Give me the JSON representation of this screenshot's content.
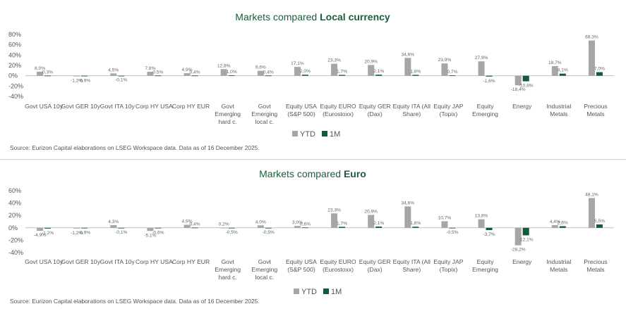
{
  "colors": {
    "ytd": "#a6a6a6",
    "m1": "#0f5c36",
    "title": "#1b5e3b",
    "axis": "#bfbfbf"
  },
  "chart_data": [
    {
      "type": "bar",
      "title_prefix": "Markets compared ",
      "title_bold": "Local currency",
      "categories": [
        [
          "Govt USA 10y"
        ],
        [
          "Govt GER 10y"
        ],
        [
          "Govt ITA 10y"
        ],
        [
          "Corp HY USA"
        ],
        [
          "Corp HY EUR"
        ],
        [
          "Govt",
          "Emerging",
          "hard c."
        ],
        [
          "Govt",
          "Emerging",
          "local c."
        ],
        [
          "Equity USA",
          "(S&P 500)"
        ],
        [
          "Equity EURO",
          "(Eurostoxx)"
        ],
        [
          "Equity GER",
          "(Dax)"
        ],
        [
          "Equity ITA (All",
          "Share)"
        ],
        [
          "Equity JAP",
          "(Topix)"
        ],
        [
          "Equity",
          "Emerging"
        ],
        [
          "Energy"
        ],
        [
          "Industrial",
          "Metals"
        ],
        [
          "Precious",
          "Metals"
        ]
      ],
      "series": [
        {
          "name": "YTD",
          "values": [
            8.0,
            -1.2,
            4.5,
            7.8,
            4.9,
            12.8,
            9.6,
            17.1,
            23.3,
            20.9,
            34.6,
            23.9,
            27.9,
            -18.4,
            18.7,
            68.3
          ],
          "labels": [
            "8,0%",
            "-1,2%",
            "4,5%",
            "7,8%",
            "4,9%",
            "12,8%",
            "9,6%",
            "17,1%",
            "23,3%",
            "20,9%",
            "34,6%",
            "23,9%",
            "27,9%",
            "-18,4%",
            "18,7%",
            "68,3%"
          ]
        },
        {
          "name": "1M",
          "values": [
            0.3,
            -0.9,
            -0.1,
            0.5,
            0.4,
            1.0,
            0.4,
            2.0,
            1.7,
            2.1,
            1.8,
            0.7,
            -1.6,
            -10.8,
            4.1,
            7.0
          ],
          "labels": [
            "0,3%",
            "-0,9%",
            "-0,1%",
            "0,5%",
            "0,4%",
            "1,0%",
            "0,4%",
            "2,0%",
            "1,7%",
            "2,1%",
            "1,8%",
            "0,7%",
            "-1,6%",
            "-10,8%",
            "4,1%",
            "7,0%"
          ]
        }
      ],
      "yticks": [
        80,
        60,
        40,
        20,
        0,
        -20,
        -40
      ],
      "ytick_labels": [
        "80%",
        "60%",
        "40%",
        "20%",
        "0%",
        "-20%",
        "-40%"
      ],
      "ylim": [
        -40,
        80
      ],
      "legend": [
        "YTD",
        "1M"
      ],
      "source": "Source: Eurizon Capital elaborations on LSEG Workspace data. Data as of 16 December 2025."
    },
    {
      "type": "bar",
      "title_prefix": "Markets compared ",
      "title_bold": "Euro",
      "categories": [
        [
          "Govt USA 10y"
        ],
        [
          "Govt GER 10y"
        ],
        [
          "Govt ITA 10y"
        ],
        [
          "Corp HY USA"
        ],
        [
          "Corp HY EUR"
        ],
        [
          "Govt",
          "Emerging",
          "hard c."
        ],
        [
          "Govt",
          "Emerging",
          "local c."
        ],
        [
          "Equity USA",
          "(S&P 500)"
        ],
        [
          "Equity EURO",
          "(Eurostoxx)"
        ],
        [
          "Equity GER",
          "(Dax)"
        ],
        [
          "Equity ITA (All",
          "Share)"
        ],
        [
          "Equity JAP",
          "(Topix)"
        ],
        [
          "Equity",
          "Emerging"
        ],
        [
          "Energy"
        ],
        [
          "Industrial",
          "Metals"
        ],
        [
          "Precious",
          "Metals"
        ]
      ],
      "series": [
        {
          "name": "YTD",
          "values": [
            -4.9,
            -1.2,
            4.3,
            -5.1,
            4.9,
            0.2,
            4.0,
            3.0,
            23.3,
            20.9,
            34.6,
            10.7,
            13.8,
            -28.2,
            4.4,
            48.1
          ],
          "labels": [
            "-4,9%",
            "-1,2%",
            "4,3%",
            "-5,1%",
            "4,9%",
            "0,2%",
            "4,0%",
            "3,0%",
            "23,3%",
            "20,9%",
            "34,6%",
            "10,7%",
            "13,8%",
            "-28,2%",
            "4,4%",
            "48,1%"
          ]
        },
        {
          "name": "1M",
          "values": [
            -1.2,
            -0.9,
            -0.1,
            -0.6,
            0.4,
            -0.5,
            -0.5,
            0.6,
            1.7,
            2.1,
            1.8,
            -0.5,
            -3.7,
            -12.1,
            2.6,
            5.5
          ],
          "labels": [
            "-1,2%",
            "-0,9%",
            "-0,1%",
            "-0,6%",
            "0,4%",
            "-0,5%",
            "-0,5%",
            "0,6%",
            "1,7%",
            "2,1%",
            "1,8%",
            "-0,5%",
            "-3,7%",
            "-12,1%",
            "2,6%",
            "5,5%"
          ]
        }
      ],
      "yticks": [
        60,
        40,
        20,
        0,
        -20,
        -40
      ],
      "ytick_labels": [
        "60%",
        "40%",
        "20%",
        "0%",
        "-20%",
        "-40%"
      ],
      "ylim": [
        -40,
        60
      ],
      "legend": [
        "YTD",
        "1M"
      ],
      "source": "Source: Eurizon Capital elaborations on LSEG Workspace data. Data as of 16 December 2025."
    }
  ]
}
